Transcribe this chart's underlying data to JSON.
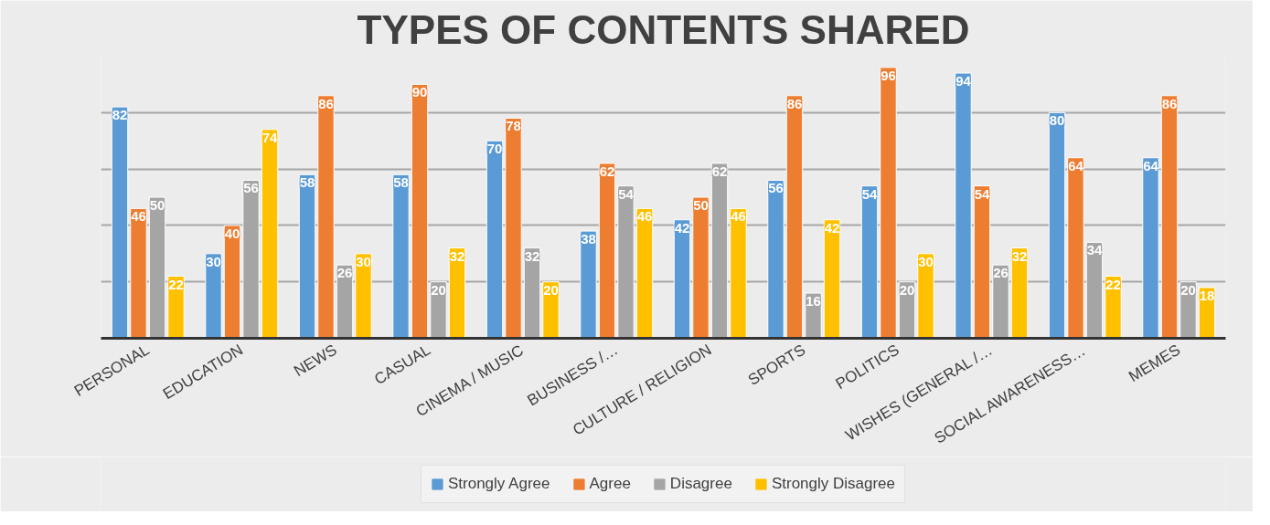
{
  "chart_data": {
    "type": "bar",
    "title": "TYPES OF CONTENTS SHARED",
    "categories": [
      "PERSONAL",
      "EDUCATION",
      "NEWS",
      "CASUAL",
      "CINEMA / MUSIC",
      "BUSINESS /…",
      "CULTURE / RELIGION",
      "SPORTS",
      "POLITICS",
      "WISHES (GENERAL /…",
      "SOCIAL AWARENESS…",
      "MEMES"
    ],
    "series": [
      {
        "name": "Strongly Agree",
        "color": "#5b9bd5",
        "values": [
          82,
          30,
          58,
          58,
          70,
          38,
          42,
          56,
          54,
          94,
          80,
          64
        ]
      },
      {
        "name": "Agree",
        "color": "#ed7d31",
        "values": [
          46,
          40,
          86,
          90,
          78,
          62,
          50,
          86,
          96,
          54,
          64,
          86
        ]
      },
      {
        "name": "Disagree",
        "color": "#a5a5a5",
        "values": [
          50,
          56,
          26,
          20,
          32,
          54,
          62,
          16,
          20,
          26,
          34,
          20
        ]
      },
      {
        "name": "Strongly Disagree",
        "color": "#ffc000",
        "values": [
          22,
          74,
          30,
          32,
          20,
          46,
          46,
          42,
          30,
          32,
          22,
          18
        ]
      }
    ],
    "ylim": [
      0,
      100
    ],
    "yticks": [
      {
        "value": 0,
        "label": null
      },
      {
        "value": 20,
        "label": null
      },
      {
        "value": 40,
        "label": null
      },
      {
        "value": 60,
        "label": null
      },
      {
        "value": 80,
        "label": null
      },
      {
        "value": 100,
        "label": null
      }
    ],
    "tick_labels": "x",
    "grid": "y",
    "legend": "bottom",
    "data_labels": true
  }
}
